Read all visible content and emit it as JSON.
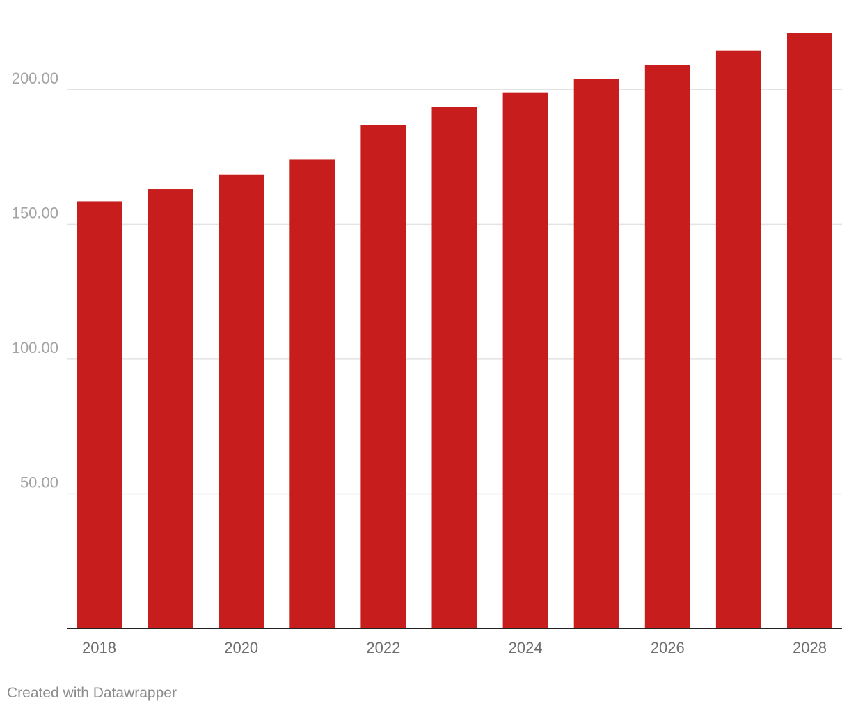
{
  "chart_data": {
    "type": "bar",
    "categories": [
      "2018",
      "2019",
      "2020",
      "2021",
      "2022",
      "2023",
      "2024",
      "2025",
      "2026",
      "2027",
      "2028"
    ],
    "values": [
      158.5,
      163.0,
      168.5,
      174.0,
      187.0,
      193.5,
      199.0,
      204.0,
      209.0,
      214.5,
      221.0
    ],
    "x_tick_labels": [
      "2018",
      "2020",
      "2022",
      "2024",
      "2026",
      "2028"
    ],
    "y_ticks": [
      50,
      100,
      150,
      200
    ],
    "y_tick_labels": [
      "50.00",
      "100.00",
      "150.00",
      "200.00"
    ],
    "ylim": [
      0,
      225
    ],
    "grid": true,
    "title": "",
    "xlabel": "",
    "ylabel": "",
    "bar_color": "#c71e1d"
  },
  "footer": {
    "credit": "Created with Datawrapper"
  }
}
